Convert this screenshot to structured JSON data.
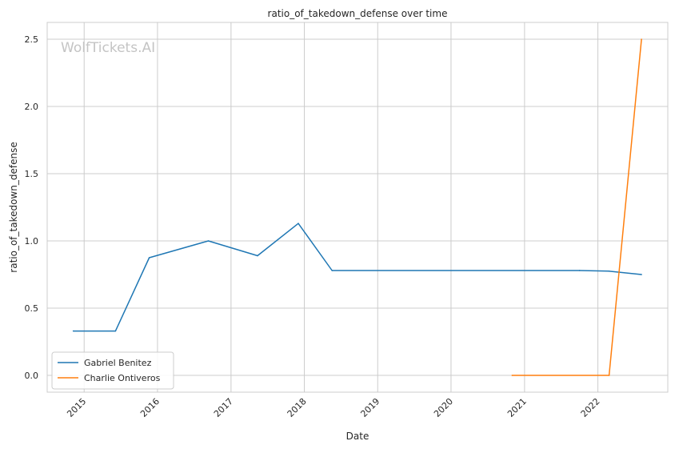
{
  "chart_data": {
    "type": "line",
    "title": "ratio_of_takedown_defense over time",
    "xlabel": "Date",
    "ylabel": "ratio_of_takedown_defense",
    "watermark": "WolfTickets.AI",
    "x_ticks": [
      "2015",
      "2016",
      "2017",
      "2018",
      "2019",
      "2020",
      "2021",
      "2022"
    ],
    "y_ticks": [
      "0.0",
      "0.5",
      "1.0",
      "1.5",
      "2.0",
      "2.5"
    ],
    "xlim": [
      "2014-07-01",
      "2022-12-15"
    ],
    "ylim": [
      -0.125,
      2.625
    ],
    "grid": true,
    "legend_position": "lower-left",
    "series": [
      {
        "name": "Gabriel Benitez",
        "color": "#1f77b4",
        "points": [
          {
            "x": "2014-11-08",
            "y": 0.33
          },
          {
            "x": "2015-06-06",
            "y": 0.33
          },
          {
            "x": "2015-11-21",
            "y": 0.875
          },
          {
            "x": "2016-09-10",
            "y": 1.0
          },
          {
            "x": "2017-05-13",
            "y": 0.89
          },
          {
            "x": "2017-12-02",
            "y": 1.13
          },
          {
            "x": "2018-05-19",
            "y": 0.78
          },
          {
            "x": "2021-10-02",
            "y": 0.78
          },
          {
            "x": "2022-02-26",
            "y": 0.775
          },
          {
            "x": "2022-08-06",
            "y": 0.75
          }
        ]
      },
      {
        "name": "Charlie Ontiveros",
        "color": "#ff7f0e",
        "points": [
          {
            "x": "2020-10-31",
            "y": 0.0
          },
          {
            "x": "2022-02-26",
            "y": 0.0
          },
          {
            "x": "2022-08-06",
            "y": 2.5
          }
        ]
      }
    ]
  }
}
